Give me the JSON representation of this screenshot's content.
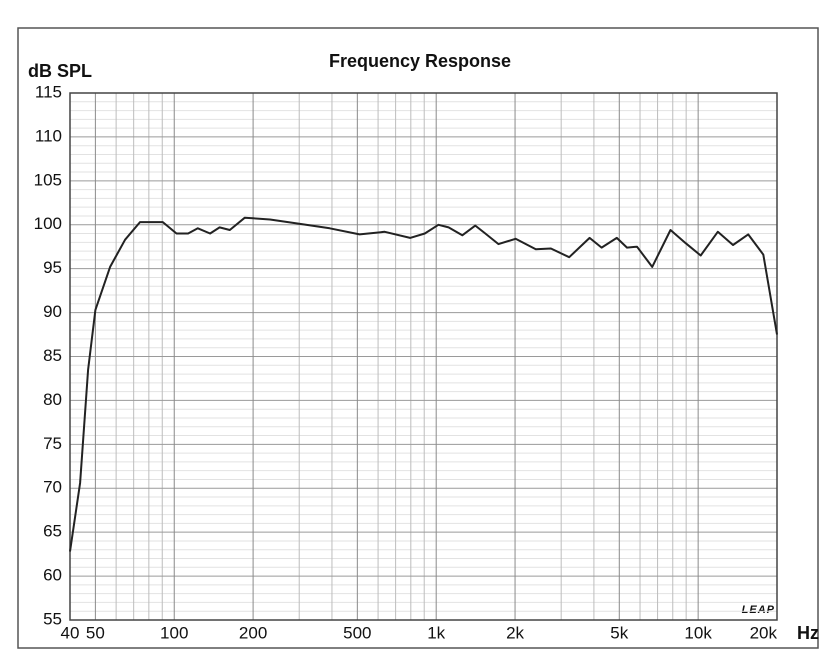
{
  "chart_data": {
    "type": "line",
    "title": "Frequency Response",
    "y_label": "dB SPL",
    "x_label": "Hz",
    "annotation": "LEAP",
    "x_scale": "log",
    "grid": true,
    "xlim": [
      40,
      20000
    ],
    "ylim": [
      55,
      115
    ],
    "xticks": [
      40,
      50,
      100,
      200,
      500,
      {
        "value": 1000,
        "label": "1k"
      },
      {
        "value": 2000,
        "label": "2k"
      },
      {
        "value": 5000,
        "label": "5k"
      },
      {
        "value": 10000,
        "label": "10k"
      },
      {
        "value": 20000,
        "label": "20k"
      }
    ],
    "x_minor_ticks": [
      60,
      70,
      80,
      90,
      300,
      400,
      600,
      700,
      800,
      900,
      3000,
      4000,
      6000,
      7000,
      8000,
      9000
    ],
    "yticks": [
      55,
      60,
      65,
      70,
      75,
      80,
      85,
      90,
      95,
      100,
      105,
      110,
      115
    ],
    "series": [
      {
        "color": "#222222",
        "x": [
          40,
          43.7,
          46.9,
          50,
          56.9,
          64.9,
          74,
          80.7,
          90.4,
          102,
          113,
          123,
          137,
          149,
          163,
          186,
          232,
          302,
          392,
          510,
          636,
          795,
          905,
          1020,
          1115,
          1258,
          1410,
          1540,
          1730,
          2010,
          2400,
          2740,
          3220,
          3850,
          4280,
          4890,
          5350,
          5840,
          6680,
          7840,
          8960,
          10230,
          11890,
          13590,
          15530,
          17730,
          20000
        ],
        "values": [
          62.8,
          70.6,
          83.5,
          90.3,
          95.2,
          98.3,
          100.3,
          100.3,
          100.3,
          99,
          99,
          99.6,
          99,
          99.7,
          99.4,
          100.8,
          100.6,
          100.1,
          99.6,
          98.9,
          99.2,
          98.5,
          99,
          100,
          99.7,
          98.8,
          99.9,
          99,
          97.8,
          98.4,
          97.2,
          97.3,
          96.3,
          98.5,
          97.4,
          98.5,
          97.4,
          97.5,
          95.2,
          99.4,
          97.9,
          96.5,
          99.2,
          97.7,
          98.9,
          96.6,
          87.5
        ]
      }
    ]
  }
}
